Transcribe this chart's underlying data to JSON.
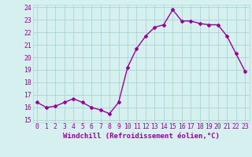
{
  "x": [
    0,
    1,
    2,
    3,
    4,
    5,
    6,
    7,
    8,
    9,
    10,
    11,
    12,
    13,
    14,
    15,
    16,
    17,
    18,
    19,
    20,
    21,
    22,
    23
  ],
  "y": [
    16.4,
    16.0,
    16.1,
    16.4,
    16.7,
    16.4,
    16.0,
    15.8,
    15.5,
    16.4,
    19.2,
    20.7,
    21.7,
    22.4,
    22.6,
    23.8,
    22.9,
    22.9,
    22.7,
    22.6,
    22.6,
    21.7,
    20.3,
    18.9
  ],
  "line_color": "#990099",
  "marker": "D",
  "marker_size": 2.0,
  "line_width": 1.0,
  "bg_color": "#d6f0f0",
  "grid_color": "#b0d8d8",
  "tick_color": "#990099",
  "xlabel": "Windchill (Refroidissement éolien,°C)",
  "xlabel_fontsize": 6.5,
  "tick_fontsize": 5.8,
  "ytick_min": 15,
  "ytick_max": 24,
  "ytick_step": 1,
  "title": ""
}
